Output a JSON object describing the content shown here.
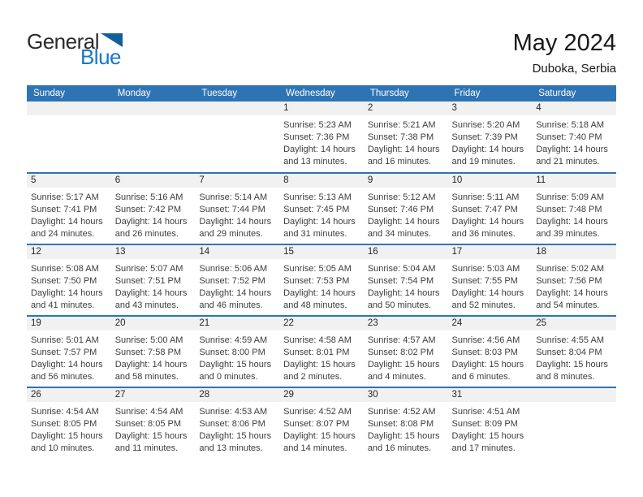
{
  "logo": {
    "general": "General",
    "blue": "Blue"
  },
  "title": "May 2024",
  "subtitle": "Duboka, Serbia",
  "colors": {
    "header_blue": "#2E74B5",
    "band_gray": "#F1F1F1",
    "logo_blue": "#1878C8",
    "logo_triangle": "#135F9B",
    "body_text": "#3D3D3D"
  },
  "weekdays": [
    "Sunday",
    "Monday",
    "Tuesday",
    "Wednesday",
    "Thursday",
    "Friday",
    "Saturday"
  ],
  "weeks": [
    [
      null,
      null,
      null,
      {
        "day": "1",
        "sunrise": "Sunrise: 5:23 AM",
        "sunset": "Sunset: 7:36 PM",
        "daylight1": "Daylight: 14 hours",
        "daylight2": "and 13 minutes."
      },
      {
        "day": "2",
        "sunrise": "Sunrise: 5:21 AM",
        "sunset": "Sunset: 7:38 PM",
        "daylight1": "Daylight: 14 hours",
        "daylight2": "and 16 minutes."
      },
      {
        "day": "3",
        "sunrise": "Sunrise: 5:20 AM",
        "sunset": "Sunset: 7:39 PM",
        "daylight1": "Daylight: 14 hours",
        "daylight2": "and 19 minutes."
      },
      {
        "day": "4",
        "sunrise": "Sunrise: 5:18 AM",
        "sunset": "Sunset: 7:40 PM",
        "daylight1": "Daylight: 14 hours",
        "daylight2": "and 21 minutes."
      }
    ],
    [
      {
        "day": "5",
        "sunrise": "Sunrise: 5:17 AM",
        "sunset": "Sunset: 7:41 PM",
        "daylight1": "Daylight: 14 hours",
        "daylight2": "and 24 minutes."
      },
      {
        "day": "6",
        "sunrise": "Sunrise: 5:16 AM",
        "sunset": "Sunset: 7:42 PM",
        "daylight1": "Daylight: 14 hours",
        "daylight2": "and 26 minutes."
      },
      {
        "day": "7",
        "sunrise": "Sunrise: 5:14 AM",
        "sunset": "Sunset: 7:44 PM",
        "daylight1": "Daylight: 14 hours",
        "daylight2": "and 29 minutes."
      },
      {
        "day": "8",
        "sunrise": "Sunrise: 5:13 AM",
        "sunset": "Sunset: 7:45 PM",
        "daylight1": "Daylight: 14 hours",
        "daylight2": "and 31 minutes."
      },
      {
        "day": "9",
        "sunrise": "Sunrise: 5:12 AM",
        "sunset": "Sunset: 7:46 PM",
        "daylight1": "Daylight: 14 hours",
        "daylight2": "and 34 minutes."
      },
      {
        "day": "10",
        "sunrise": "Sunrise: 5:11 AM",
        "sunset": "Sunset: 7:47 PM",
        "daylight1": "Daylight: 14 hours",
        "daylight2": "and 36 minutes."
      },
      {
        "day": "11",
        "sunrise": "Sunrise: 5:09 AM",
        "sunset": "Sunset: 7:48 PM",
        "daylight1": "Daylight: 14 hours",
        "daylight2": "and 39 minutes."
      }
    ],
    [
      {
        "day": "12",
        "sunrise": "Sunrise: 5:08 AM",
        "sunset": "Sunset: 7:50 PM",
        "daylight1": "Daylight: 14 hours",
        "daylight2": "and 41 minutes."
      },
      {
        "day": "13",
        "sunrise": "Sunrise: 5:07 AM",
        "sunset": "Sunset: 7:51 PM",
        "daylight1": "Daylight: 14 hours",
        "daylight2": "and 43 minutes."
      },
      {
        "day": "14",
        "sunrise": "Sunrise: 5:06 AM",
        "sunset": "Sunset: 7:52 PM",
        "daylight1": "Daylight: 14 hours",
        "daylight2": "and 46 minutes."
      },
      {
        "day": "15",
        "sunrise": "Sunrise: 5:05 AM",
        "sunset": "Sunset: 7:53 PM",
        "daylight1": "Daylight: 14 hours",
        "daylight2": "and 48 minutes."
      },
      {
        "day": "16",
        "sunrise": "Sunrise: 5:04 AM",
        "sunset": "Sunset: 7:54 PM",
        "daylight1": "Daylight: 14 hours",
        "daylight2": "and 50 minutes."
      },
      {
        "day": "17",
        "sunrise": "Sunrise: 5:03 AM",
        "sunset": "Sunset: 7:55 PM",
        "daylight1": "Daylight: 14 hours",
        "daylight2": "and 52 minutes."
      },
      {
        "day": "18",
        "sunrise": "Sunrise: 5:02 AM",
        "sunset": "Sunset: 7:56 PM",
        "daylight1": "Daylight: 14 hours",
        "daylight2": "and 54 minutes."
      }
    ],
    [
      {
        "day": "19",
        "sunrise": "Sunrise: 5:01 AM",
        "sunset": "Sunset: 7:57 PM",
        "daylight1": "Daylight: 14 hours",
        "daylight2": "and 56 minutes."
      },
      {
        "day": "20",
        "sunrise": "Sunrise: 5:00 AM",
        "sunset": "Sunset: 7:58 PM",
        "daylight1": "Daylight: 14 hours",
        "daylight2": "and 58 minutes."
      },
      {
        "day": "21",
        "sunrise": "Sunrise: 4:59 AM",
        "sunset": "Sunset: 8:00 PM",
        "daylight1": "Daylight: 15 hours",
        "daylight2": "and 0 minutes."
      },
      {
        "day": "22",
        "sunrise": "Sunrise: 4:58 AM",
        "sunset": "Sunset: 8:01 PM",
        "daylight1": "Daylight: 15 hours",
        "daylight2": "and 2 minutes."
      },
      {
        "day": "23",
        "sunrise": "Sunrise: 4:57 AM",
        "sunset": "Sunset: 8:02 PM",
        "daylight1": "Daylight: 15 hours",
        "daylight2": "and 4 minutes."
      },
      {
        "day": "24",
        "sunrise": "Sunrise: 4:56 AM",
        "sunset": "Sunset: 8:03 PM",
        "daylight1": "Daylight: 15 hours",
        "daylight2": "and 6 minutes."
      },
      {
        "day": "25",
        "sunrise": "Sunrise: 4:55 AM",
        "sunset": "Sunset: 8:04 PM",
        "daylight1": "Daylight: 15 hours",
        "daylight2": "and 8 minutes."
      }
    ],
    [
      {
        "day": "26",
        "sunrise": "Sunrise: 4:54 AM",
        "sunset": "Sunset: 8:05 PM",
        "daylight1": "Daylight: 15 hours",
        "daylight2": "and 10 minutes."
      },
      {
        "day": "27",
        "sunrise": "Sunrise: 4:54 AM",
        "sunset": "Sunset: 8:05 PM",
        "daylight1": "Daylight: 15 hours",
        "daylight2": "and 11 minutes."
      },
      {
        "day": "28",
        "sunrise": "Sunrise: 4:53 AM",
        "sunset": "Sunset: 8:06 PM",
        "daylight1": "Daylight: 15 hours",
        "daylight2": "and 13 minutes."
      },
      {
        "day": "29",
        "sunrise": "Sunrise: 4:52 AM",
        "sunset": "Sunset: 8:07 PM",
        "daylight1": "Daylight: 15 hours",
        "daylight2": "and 14 minutes."
      },
      {
        "day": "30",
        "sunrise": "Sunrise: 4:52 AM",
        "sunset": "Sunset: 8:08 PM",
        "daylight1": "Daylight: 15 hours",
        "daylight2": "and 16 minutes."
      },
      {
        "day": "31",
        "sunrise": "Sunrise: 4:51 AM",
        "sunset": "Sunset: 8:09 PM",
        "daylight1": "Daylight: 15 hours",
        "daylight2": "and 17 minutes."
      },
      null
    ]
  ]
}
